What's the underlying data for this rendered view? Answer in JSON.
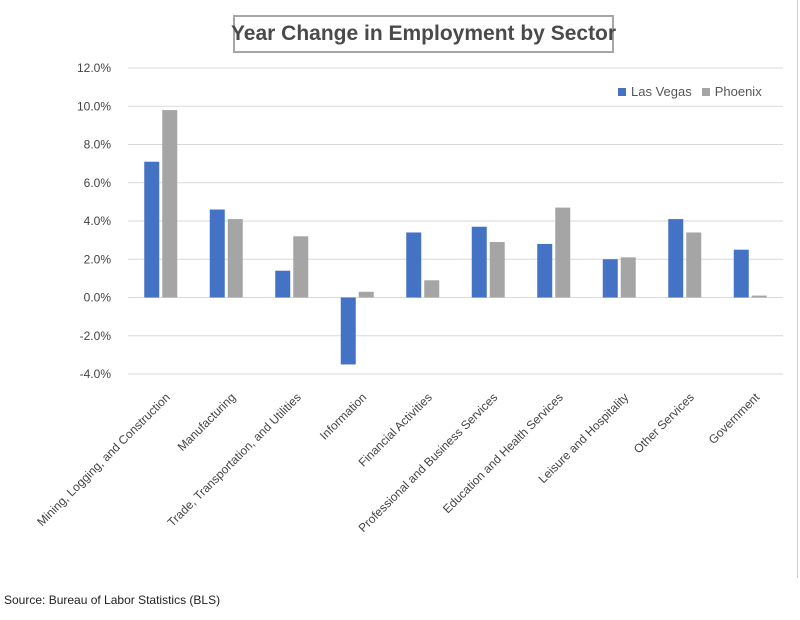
{
  "chart_data": {
    "type": "bar",
    "title": "Year Change in Employment by Sector",
    "categories": [
      "Mining, Logging, and Construction",
      "Manufacturing",
      "Trade, Transportation, and Utilities",
      "Information",
      "Financial Activities",
      "Professional and Business Services",
      "Education and Health Services",
      "Leisure and Hospitality",
      "Other Services",
      "Government"
    ],
    "series": [
      {
        "name": "Las Vegas",
        "color": "#4472c4",
        "values": [
          7.1,
          4.6,
          1.4,
          -3.5,
          3.4,
          3.7,
          2.8,
          2.0,
          4.1,
          2.5
        ]
      },
      {
        "name": "Phoenix",
        "color": "#a5a5a5",
        "values": [
          9.8,
          4.1,
          3.2,
          0.3,
          0.9,
          2.9,
          4.7,
          2.1,
          3.4,
          0.1
        ]
      }
    ],
    "y_ticks": [
      "12.0%",
      "10.0%",
      "8.0%",
      "6.0%",
      "4.0%",
      "2.0%",
      "0.0%",
      "-2.0%",
      "-4.0%"
    ],
    "ylim": [
      -4,
      12
    ],
    "y_format": "percent",
    "grid": true,
    "legend_position": "top-right"
  },
  "footer": {
    "source": "Source: Bureau of Labor Statistics (BLS)"
  }
}
